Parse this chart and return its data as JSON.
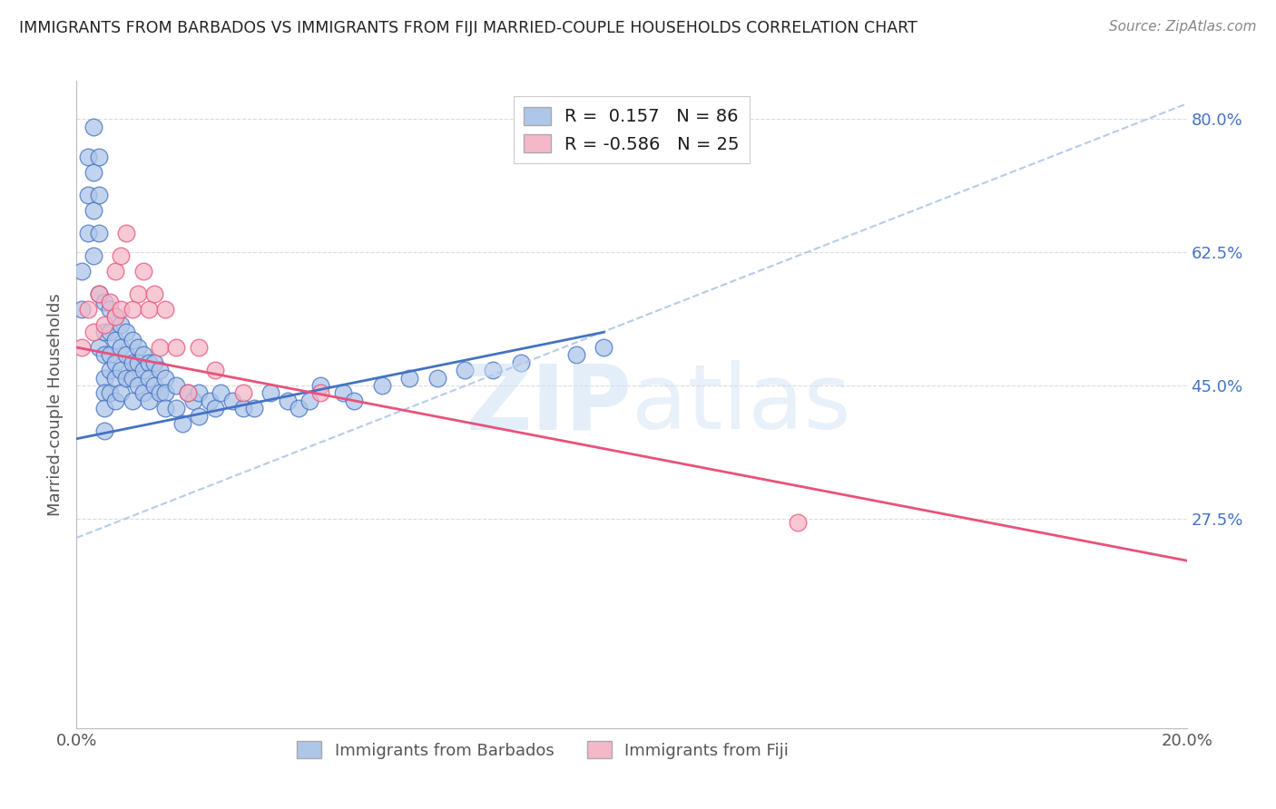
{
  "title": "IMMIGRANTS FROM BARBADOS VS IMMIGRANTS FROM FIJI MARRIED-COUPLE HOUSEHOLDS CORRELATION CHART",
  "source": "Source: ZipAtlas.com",
  "ylabel": "Married-couple Households",
  "xlim": [
    0.0,
    0.2
  ],
  "ylim": [
    0.0,
    0.85
  ],
  "yticks": [
    0.275,
    0.45,
    0.625,
    0.8
  ],
  "ytick_labels": [
    "27.5%",
    "45.0%",
    "62.5%",
    "80.0%"
  ],
  "xticks": [
    0.0,
    0.05,
    0.1,
    0.15,
    0.2
  ],
  "xtick_labels": [
    "0.0%",
    "",
    "",
    "",
    "20.0%"
  ],
  "barbados_R": 0.157,
  "barbados_N": 86,
  "fiji_R": -0.586,
  "fiji_N": 25,
  "barbados_color": "#aec6e8",
  "fiji_color": "#f4b8c8",
  "barbados_line_color": "#4472c4",
  "fiji_line_color": "#e8527a",
  "dashed_line_color": "#aec6e8",
  "barbados_line_x": [
    0.0,
    0.095
  ],
  "barbados_line_y": [
    0.38,
    0.52
  ],
  "fiji_line_x": [
    0.0,
    0.2
  ],
  "fiji_line_y": [
    0.5,
    0.22
  ],
  "dashed_line_x": [
    0.0,
    0.2
  ],
  "dashed_line_y": [
    0.25,
    0.82
  ],
  "barbados_scatter_x": [
    0.001,
    0.001,
    0.002,
    0.002,
    0.002,
    0.003,
    0.003,
    0.003,
    0.003,
    0.004,
    0.004,
    0.004,
    0.004,
    0.004,
    0.005,
    0.005,
    0.005,
    0.005,
    0.005,
    0.005,
    0.005,
    0.006,
    0.006,
    0.006,
    0.006,
    0.006,
    0.007,
    0.007,
    0.007,
    0.007,
    0.007,
    0.008,
    0.008,
    0.008,
    0.008,
    0.009,
    0.009,
    0.009,
    0.01,
    0.01,
    0.01,
    0.01,
    0.011,
    0.011,
    0.011,
    0.012,
    0.012,
    0.012,
    0.013,
    0.013,
    0.013,
    0.014,
    0.014,
    0.015,
    0.015,
    0.016,
    0.016,
    0.016,
    0.018,
    0.018,
    0.019,
    0.02,
    0.021,
    0.022,
    0.022,
    0.024,
    0.025,
    0.026,
    0.028,
    0.03,
    0.032,
    0.035,
    0.038,
    0.04,
    0.042,
    0.044,
    0.048,
    0.05,
    0.055,
    0.06,
    0.065,
    0.07,
    0.075,
    0.08,
    0.09,
    0.095
  ],
  "barbados_scatter_y": [
    0.6,
    0.55,
    0.75,
    0.7,
    0.65,
    0.79,
    0.73,
    0.68,
    0.62,
    0.75,
    0.7,
    0.65,
    0.57,
    0.5,
    0.56,
    0.52,
    0.49,
    0.46,
    0.44,
    0.42,
    0.39,
    0.55,
    0.52,
    0.49,
    0.47,
    0.44,
    0.54,
    0.51,
    0.48,
    0.46,
    0.43,
    0.53,
    0.5,
    0.47,
    0.44,
    0.52,
    0.49,
    0.46,
    0.51,
    0.48,
    0.46,
    0.43,
    0.5,
    0.48,
    0.45,
    0.49,
    0.47,
    0.44,
    0.48,
    0.46,
    0.43,
    0.48,
    0.45,
    0.47,
    0.44,
    0.46,
    0.44,
    0.42,
    0.45,
    0.42,
    0.4,
    0.44,
    0.43,
    0.44,
    0.41,
    0.43,
    0.42,
    0.44,
    0.43,
    0.42,
    0.42,
    0.44,
    0.43,
    0.42,
    0.43,
    0.45,
    0.44,
    0.43,
    0.45,
    0.46,
    0.46,
    0.47,
    0.47,
    0.48,
    0.49,
    0.5
  ],
  "fiji_scatter_x": [
    0.001,
    0.002,
    0.003,
    0.004,
    0.005,
    0.006,
    0.007,
    0.007,
    0.008,
    0.008,
    0.009,
    0.01,
    0.011,
    0.012,
    0.013,
    0.014,
    0.015,
    0.016,
    0.018,
    0.02,
    0.022,
    0.025,
    0.03,
    0.044,
    0.13
  ],
  "fiji_scatter_y": [
    0.5,
    0.55,
    0.52,
    0.57,
    0.53,
    0.56,
    0.54,
    0.6,
    0.55,
    0.62,
    0.65,
    0.55,
    0.57,
    0.6,
    0.55,
    0.57,
    0.5,
    0.55,
    0.5,
    0.44,
    0.5,
    0.47,
    0.44,
    0.44,
    0.27
  ]
}
